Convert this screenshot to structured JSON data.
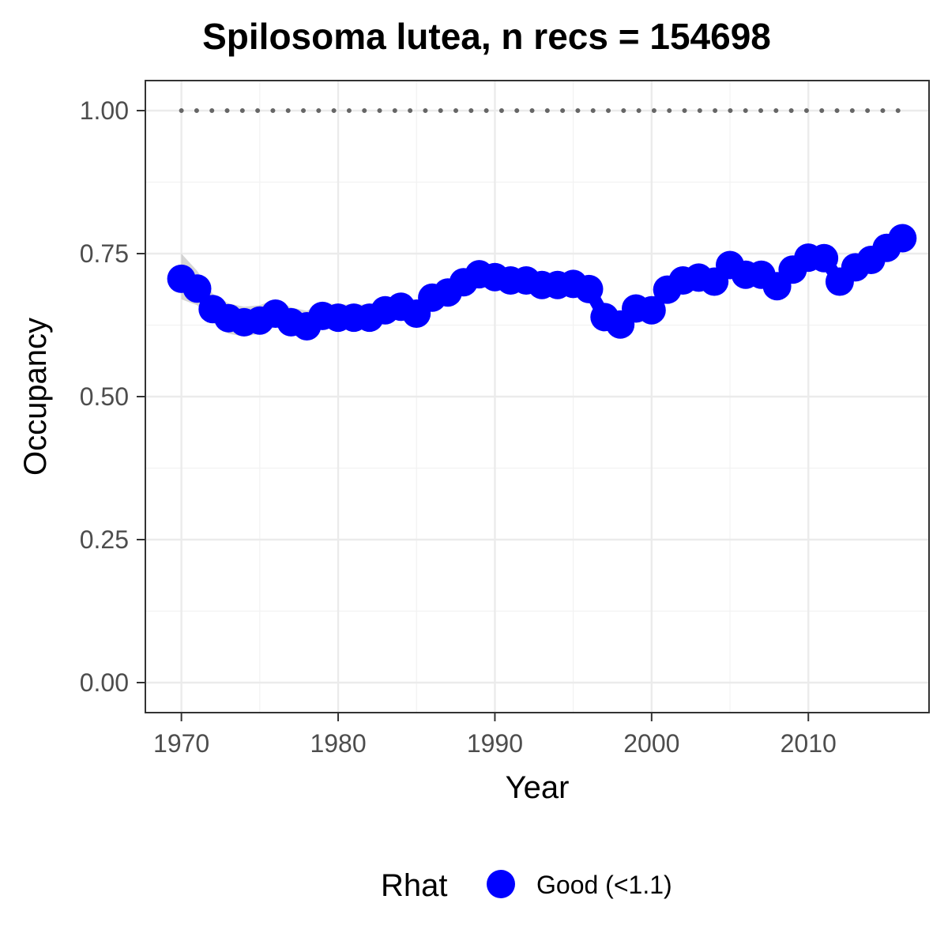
{
  "chart_data": {
    "type": "line",
    "title": "Spilosoma lutea, n recs = 154698",
    "xlabel": "Year",
    "ylabel": "Occupancy",
    "xlim": [
      1967.7,
      2017.7
    ],
    "ylim": [
      -0.0525,
      1.0525
    ],
    "x_ticks": [
      1970,
      1980,
      1990,
      2000,
      2010
    ],
    "x_tick_labels": [
      "1970",
      "1980",
      "1990",
      "2000",
      "2010"
    ],
    "y_ticks": [
      0,
      0.25,
      0.5,
      0.75,
      1.0
    ],
    "y_tick_labels": [
      "0.00",
      "0.25",
      "0.50",
      "0.75",
      "1.00"
    ],
    "grid": true,
    "x": [
      1970,
      1971,
      1972,
      1973,
      1974,
      1975,
      1976,
      1977,
      1978,
      1979,
      1980,
      1981,
      1982,
      1983,
      1984,
      1985,
      1986,
      1987,
      1988,
      1989,
      1990,
      1991,
      1992,
      1993,
      1994,
      1995,
      1996,
      1997,
      1998,
      1999,
      2000,
      2001,
      2002,
      2003,
      2004,
      2005,
      2006,
      2007,
      2008,
      2009,
      2010,
      2011,
      2012,
      2013,
      2014,
      2015,
      2016
    ],
    "series": [
      {
        "name": "Good (<1.1)",
        "color": "#0000ff",
        "values": [
          0.706,
          0.689,
          0.653,
          0.637,
          0.63,
          0.633,
          0.645,
          0.63,
          0.623,
          0.641,
          0.638,
          0.638,
          0.638,
          0.651,
          0.657,
          0.645,
          0.673,
          0.682,
          0.7,
          0.714,
          0.709,
          0.703,
          0.703,
          0.695,
          0.695,
          0.697,
          0.688,
          0.639,
          0.626,
          0.654,
          0.651,
          0.687,
          0.703,
          0.708,
          0.701,
          0.73,
          0.713,
          0.713,
          0.693,
          0.722,
          0.743,
          0.742,
          0.701,
          0.726,
          0.739,
          0.76,
          0.777
        ],
        "ci_lower": [
          0.67,
          0.66,
          0.63,
          0.61,
          0.605,
          0.61,
          0.622,
          0.608,
          0.6,
          0.62,
          0.617,
          0.617,
          0.617,
          0.632,
          0.638,
          0.628,
          0.657,
          0.667,
          0.687,
          0.702,
          0.698,
          0.692,
          0.692,
          0.684,
          0.684,
          0.686,
          0.677,
          0.627,
          0.614,
          0.643,
          0.64,
          0.677,
          0.694,
          0.699,
          0.692,
          0.721,
          0.704,
          0.704,
          0.684,
          0.713,
          0.735,
          0.734,
          0.692,
          0.718,
          0.731,
          0.752,
          0.77
        ],
        "ci_upper": [
          0.75,
          0.72,
          0.68,
          0.663,
          0.657,
          0.66,
          0.67,
          0.656,
          0.65,
          0.664,
          0.661,
          0.661,
          0.661,
          0.672,
          0.677,
          0.664,
          0.69,
          0.698,
          0.714,
          0.726,
          0.72,
          0.714,
          0.714,
          0.706,
          0.706,
          0.708,
          0.699,
          0.651,
          0.638,
          0.665,
          0.662,
          0.697,
          0.712,
          0.717,
          0.71,
          0.739,
          0.722,
          0.722,
          0.702,
          0.731,
          0.751,
          0.75,
          0.71,
          0.734,
          0.747,
          0.768,
          0.785
        ]
      }
    ],
    "reference_line": {
      "y": 1.0,
      "style": "dotted",
      "color": "#666666"
    },
    "legend": {
      "title": "Rhat",
      "placement": "bottom",
      "entries": [
        {
          "label": "Good (<1.1)",
          "color": "#0000ff"
        }
      ]
    }
  }
}
